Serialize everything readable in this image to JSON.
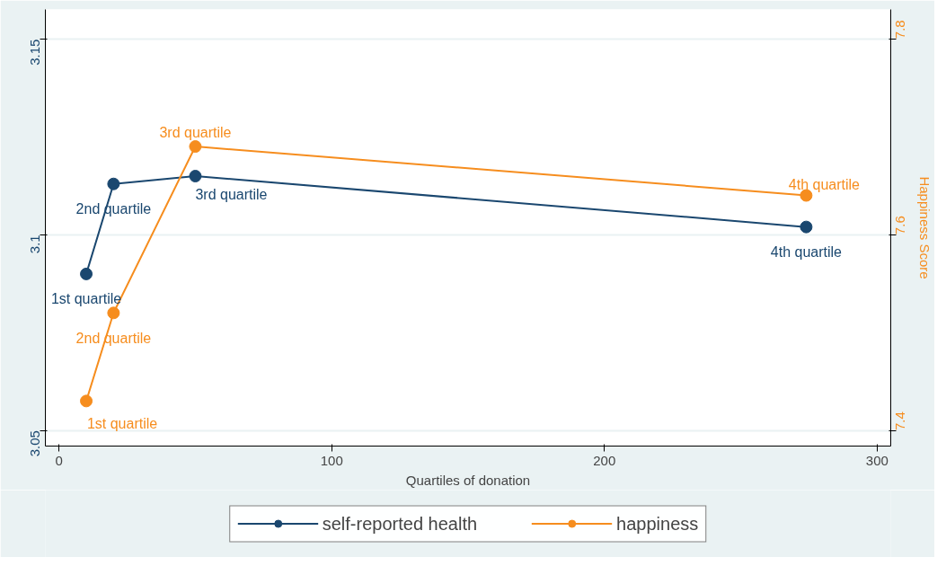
{
  "chart_data": {
    "type": "line",
    "xlabel": "Quartiles of donation",
    "y2label": "Happiness Score",
    "x": [
      10,
      20,
      50,
      274
    ],
    "series": [
      {
        "name": "self-reported health",
        "color": "#1a476f",
        "values": [
          3.09,
          3.113,
          3.115,
          3.102
        ]
      },
      {
        "name": "happiness",
        "color": "#f68d1e",
        "axis": "y2",
        "values": [
          7.43,
          7.52,
          7.69,
          7.64
        ]
      }
    ],
    "xlim": [
      -5,
      305
    ],
    "xticks": [
      0,
      100,
      200,
      300
    ],
    "ylim": [
      3.046,
      3.1576
    ],
    "yticks": [
      3.05,
      3.1,
      3.15
    ],
    "y2lim": [
      7.384,
      7.83
    ],
    "y2ticks": [
      7.4,
      7.6,
      7.8
    ],
    "annotations": [
      {
        "text": "1st quartile",
        "x": 10,
        "y": 3.09
      },
      {
        "text": "2nd quartile",
        "x": 20,
        "y": 3.113
      },
      {
        "text": "3rd quartile",
        "x": 50,
        "y": 3.115
      },
      {
        "text": "4th quartile",
        "x": 274,
        "y": 3.102
      },
      "1st quartile",
      "2nd quartile",
      "3rd quartile",
      "4th quartile"
    ],
    "grid": "y",
    "legend": "bottom",
    "marker": "circle",
    "line_style": "solid"
  }
}
